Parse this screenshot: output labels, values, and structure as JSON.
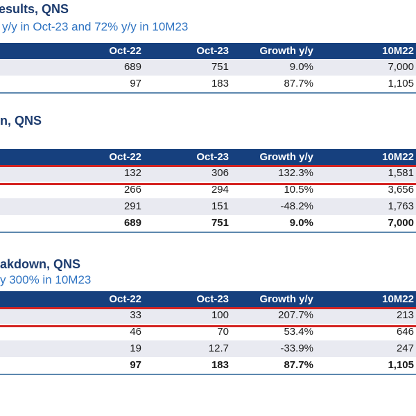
{
  "currency_unit": "QNS",
  "colors": {
    "header_bg": "#16407E",
    "title_navy": "#1C3B6E",
    "subtitle_blue": "#2E73C2",
    "row_shade": "#E9EAF1",
    "highlight_red": "#D42422",
    "underline_blue": "#5C87AE",
    "cell_text": "#1A1A1A"
  },
  "sections": [
    {
      "title": "esults, QNS",
      "subtitle": "y/y in Oct-23 and 72% y/y in 10M23",
      "table": {
        "columns": [
          "",
          "Oct-22",
          "Oct-23",
          "Growth y/y",
          "10M22"
        ],
        "rows": [
          {
            "cells": [
              "",
              "689",
              "751",
              "9.0%",
              "7,000"
            ],
            "shaded": true,
            "highlighted": false,
            "bold": false
          },
          {
            "cells": [
              "",
              "97",
              "183",
              "87.7%",
              "1,105"
            ],
            "shaded": false,
            "highlighted": false,
            "bold": false
          }
        ]
      }
    },
    {
      "title": "n, QNS",
      "subtitle": "",
      "table": {
        "columns": [
          "",
          "Oct-22",
          "Oct-23",
          "Growth y/y",
          "10M22"
        ],
        "rows": [
          {
            "cells": [
              "",
              "132",
              "306",
              "132.3%",
              "1,581"
            ],
            "shaded": true,
            "highlighted": true,
            "bold": false
          },
          {
            "cells": [
              "",
              "266",
              "294",
              "10.5%",
              "3,656"
            ],
            "shaded": false,
            "highlighted": false,
            "bold": false
          },
          {
            "cells": [
              "",
              "291",
              "151",
              "-48.2%",
              "1,763"
            ],
            "shaded": true,
            "highlighted": false,
            "bold": false
          },
          {
            "cells": [
              "",
              "689",
              "751",
              "9.0%",
              "7,000"
            ],
            "shaded": false,
            "highlighted": false,
            "bold": true
          }
        ]
      }
    },
    {
      "title": "akdown, QNS",
      "subtitle": "y 300% in 10M23",
      "table": {
        "columns": [
          "",
          "Oct-22",
          "Oct-23",
          "Growth y/y",
          "10M22"
        ],
        "rows": [
          {
            "cells": [
              "",
              "33",
              "100",
              "207.7%",
              "213"
            ],
            "shaded": true,
            "highlighted": true,
            "bold": false
          },
          {
            "cells": [
              "",
              "46",
              "70",
              "53.4%",
              "646"
            ],
            "shaded": false,
            "highlighted": false,
            "bold": false
          },
          {
            "cells": [
              "",
              "19",
              "12.7",
              "-33.9%",
              "247"
            ],
            "shaded": true,
            "highlighted": false,
            "bold": false
          },
          {
            "cells": [
              "",
              "97",
              "183",
              "87.7%",
              "1,105"
            ],
            "shaded": false,
            "highlighted": false,
            "bold": true
          }
        ]
      }
    }
  ]
}
